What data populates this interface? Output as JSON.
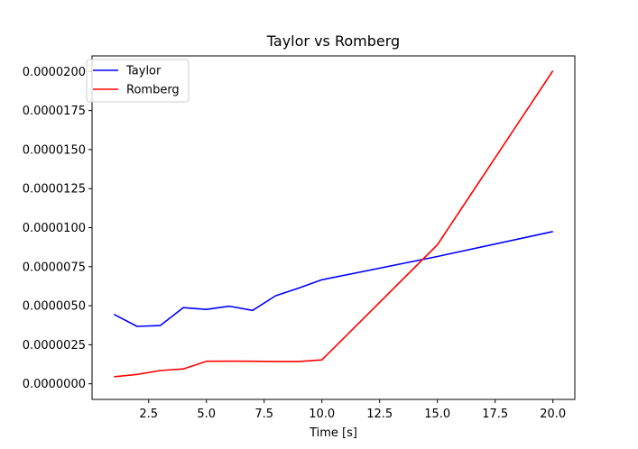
{
  "chart_data": {
    "type": "line",
    "title": "Taylor vs Romberg",
    "xlabel": "Time [s]",
    "ylabel": "",
    "xlim": [
      0.05,
      20.95
    ],
    "ylim": [
      -1e-06,
      2.1e-05
    ],
    "xticks": [
      2.5,
      5.0,
      7.5,
      10.0,
      12.5,
      15.0,
      17.5,
      20.0
    ],
    "xtick_labels": [
      "2.5",
      "5.0",
      "7.5",
      "10.0",
      "12.5",
      "15.0",
      "17.5",
      "20.0"
    ],
    "yticks": [
      0.0,
      2.5e-06,
      5e-06,
      7.5e-06,
      1e-05,
      1.25e-05,
      1.5e-05,
      1.75e-05,
      2e-05
    ],
    "ytick_labels": [
      "0.0000000",
      "0.0000025",
      "0.0000050",
      "0.0000075",
      "0.0000100",
      "0.0000125",
      "0.0000150",
      "0.0000175",
      "0.0000200"
    ],
    "grid": false,
    "legend_position": "upper-left",
    "series": [
      {
        "name": "Taylor",
        "color": "#0000ff",
        "x": [
          1,
          2,
          3,
          4,
          5,
          6,
          7,
          8,
          9,
          10,
          15,
          20
        ],
        "y": [
          4.45e-06,
          3.68e-06,
          3.73e-06,
          4.88e-06,
          4.76e-06,
          4.97e-06,
          4.7e-06,
          5.64e-06,
          6.13e-06,
          6.66e-06,
          8.15e-06,
          9.75e-06
        ]
      },
      {
        "name": "Romberg",
        "color": "#ff0000",
        "x": [
          1,
          2,
          3,
          4,
          5,
          6,
          7,
          8,
          9,
          10,
          15,
          20
        ],
        "y": [
          4.5e-07,
          6e-07,
          8.5e-07,
          9.5e-07,
          1.44e-06,
          1.45e-06,
          1.44e-06,
          1.43e-06,
          1.43e-06,
          1.53e-06,
          8.9e-06,
          2.005e-05
        ]
      }
    ]
  }
}
